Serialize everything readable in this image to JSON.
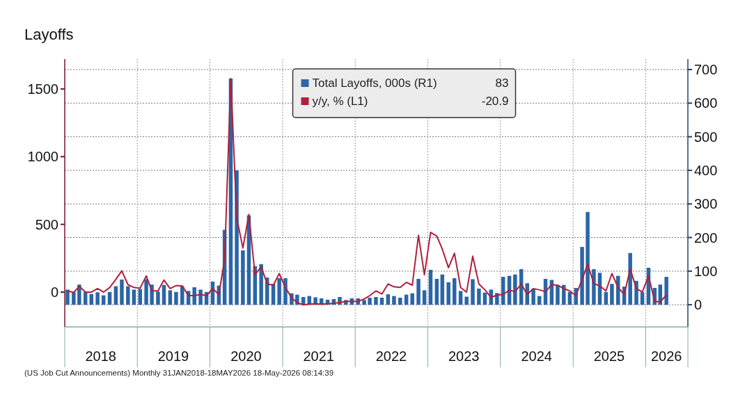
{
  "chart_data": {
    "type": "bar",
    "title": "Layoffs",
    "x": [
      "2018-01-15",
      "2018-02-15",
      "2018-03-15",
      "2018-04-15",
      "2018-05-15",
      "2018-06-15",
      "2018-07-15",
      "2018-08-15",
      "2018-09-15",
      "2018-10-15",
      "2018-11-15",
      "2018-12-15",
      "2019-01-15",
      "2019-02-15",
      "2019-03-15",
      "2019-04-15",
      "2019-05-15",
      "2019-06-15",
      "2019-07-15",
      "2019-08-15",
      "2019-09-15",
      "2019-10-15",
      "2019-11-15",
      "2019-12-15",
      "2020-01-15",
      "2020-02-15",
      "2020-03-15",
      "2020-04-15",
      "2020-05-15",
      "2020-06-15",
      "2020-07-15",
      "2020-08-15",
      "2020-09-15",
      "2020-10-15",
      "2020-11-15",
      "2020-12-15",
      "2021-01-15",
      "2021-02-15",
      "2021-03-15",
      "2021-04-15",
      "2021-05-15",
      "2021-06-15",
      "2021-07-15",
      "2021-08-15",
      "2021-09-15",
      "2021-10-15",
      "2021-11-15",
      "2021-12-15",
      "2022-01-15",
      "2022-02-15",
      "2022-03-15",
      "2022-04-15",
      "2022-05-15",
      "2022-06-15",
      "2022-07-15",
      "2022-08-15",
      "2022-09-15",
      "2022-10-15",
      "2022-11-15",
      "2022-12-15",
      "2023-01-15",
      "2023-02-15",
      "2023-03-15",
      "2023-04-15",
      "2023-05-15",
      "2023-06-15",
      "2023-07-15",
      "2023-08-15",
      "2023-09-15",
      "2023-10-15",
      "2023-11-15",
      "2023-12-15",
      "2024-01-15",
      "2024-02-15",
      "2024-03-15",
      "2024-04-15",
      "2024-05-15",
      "2024-06-15",
      "2024-07-15",
      "2024-08-15",
      "2024-09-15",
      "2024-10-15",
      "2024-11-15",
      "2024-12-15",
      "2025-01-15",
      "2025-02-15",
      "2025-03-15",
      "2025-04-15",
      "2025-05-15",
      "2025-06-15",
      "2025-07-15",
      "2025-08-15",
      "2025-09-15",
      "2025-10-15",
      "2025-11-15",
      "2025-12-15",
      "2026-01-15",
      "2026-02-15",
      "2026-03-15",
      "2026-04-15"
    ],
    "series": [
      {
        "name": "Total Layoffs, 000s (R1)",
        "axis": "y2",
        "color": "#2b66a6",
        "values": [
          45,
          37,
          60,
          38,
          32,
          37,
          28,
          38,
          55,
          75,
          55,
          45,
          47,
          76,
          60,
          39,
          59,
          43,
          38,
          55,
          41,
          52,
          45,
          38,
          69,
          57,
          223,
          673,
          400,
          162,
          266,
          115,
          121,
          81,
          62,
          79,
          79,
          34,
          30,
          23,
          26,
          22,
          19,
          15,
          17,
          23,
          14,
          19,
          19,
          14,
          21,
          23,
          21,
          31,
          26,
          21,
          30,
          34,
          77,
          43,
          104,
          77,
          90,
          67,
          79,
          41,
          24,
          76,
          48,
          36,
          45,
          35,
          83,
          86,
          90,
          106,
          64,
          48,
          26,
          77,
          74,
          59,
          59,
          38,
          50,
          172,
          276,
          106,
          95,
          38,
          62,
          86,
          54,
          154,
          71,
          37,
          110,
          50,
          60,
          83
        ]
      },
      {
        "name": "y/y, % (L1)",
        "type": "line",
        "color": "#b01f3c",
        "values": [
          9,
          -3,
          43,
          0,
          0,
          26,
          0,
          34,
          94,
          157,
          55,
          34,
          29,
          120,
          9,
          9,
          89,
          26,
          48,
          46,
          -26,
          -26,
          -17,
          -26,
          26,
          -17,
          240,
          1576,
          548,
          325,
          573,
          128,
          188,
          60,
          51,
          137,
          34,
          -43,
          -77,
          -94,
          -89,
          -86,
          -89,
          -86,
          -82,
          -77,
          -68,
          -68,
          -68,
          -51,
          -26,
          9,
          -14,
          60,
          39,
          34,
          72,
          51,
          419,
          128,
          441,
          414,
          317,
          180,
          287,
          34,
          0,
          265,
          60,
          17,
          -39,
          -22,
          -17,
          14,
          3,
          60,
          -17,
          26,
          17,
          3,
          55,
          51,
          26,
          9,
          -26,
          94,
          205,
          63,
          46,
          9,
          137,
          34,
          -17,
          171,
          26,
          0,
          120,
          -68,
          -72,
          -20.9
        ]
      }
    ],
    "xlim": [
      "2018-01-01",
      "2026-08-01"
    ],
    "xticks": [
      {
        "value": "2018-07-01",
        "label": "2018"
      },
      {
        "value": "2019-01-01",
        "label": null
      },
      {
        "value": "2019-07-01",
        "label": "2019"
      },
      {
        "value": "2020-01-01",
        "label": null
      },
      {
        "value": "2020-07-01",
        "label": "2020"
      },
      {
        "value": "2021-01-01",
        "label": null
      },
      {
        "value": "2021-07-01",
        "label": "2021"
      },
      {
        "value": "2022-01-01",
        "label": null
      },
      {
        "value": "2022-07-01",
        "label": "2022"
      },
      {
        "value": "2023-01-01",
        "label": null
      },
      {
        "value": "2023-07-01",
        "label": "2023"
      },
      {
        "value": "2024-01-01",
        "label": null
      },
      {
        "value": "2024-07-01",
        "label": "2024"
      },
      {
        "value": "2025-01-01",
        "label": null
      },
      {
        "value": "2025-07-01",
        "label": "2025"
      },
      {
        "value": "2026-01-01",
        "label": null
      },
      {
        "value": "2026-04-15",
        "label": "2026"
      }
    ],
    "ylim": [
      -257,
      1720
    ],
    "yticks": [
      0,
      500,
      1000,
      1500
    ],
    "y2lim": [
      -66,
      731
    ],
    "y2ticks": [
      0,
      100,
      200,
      300,
      400,
      500,
      600,
      700
    ],
    "grid": true,
    "legend": "top",
    "marker": "none",
    "line_style": "solid",
    "annotations": [
      "(US Job Cut Announcements) Monthly 31JAN2018-18MAY2026 18-May-2026 08:14:39",
      "83",
      "-20.9"
    ]
  }
}
